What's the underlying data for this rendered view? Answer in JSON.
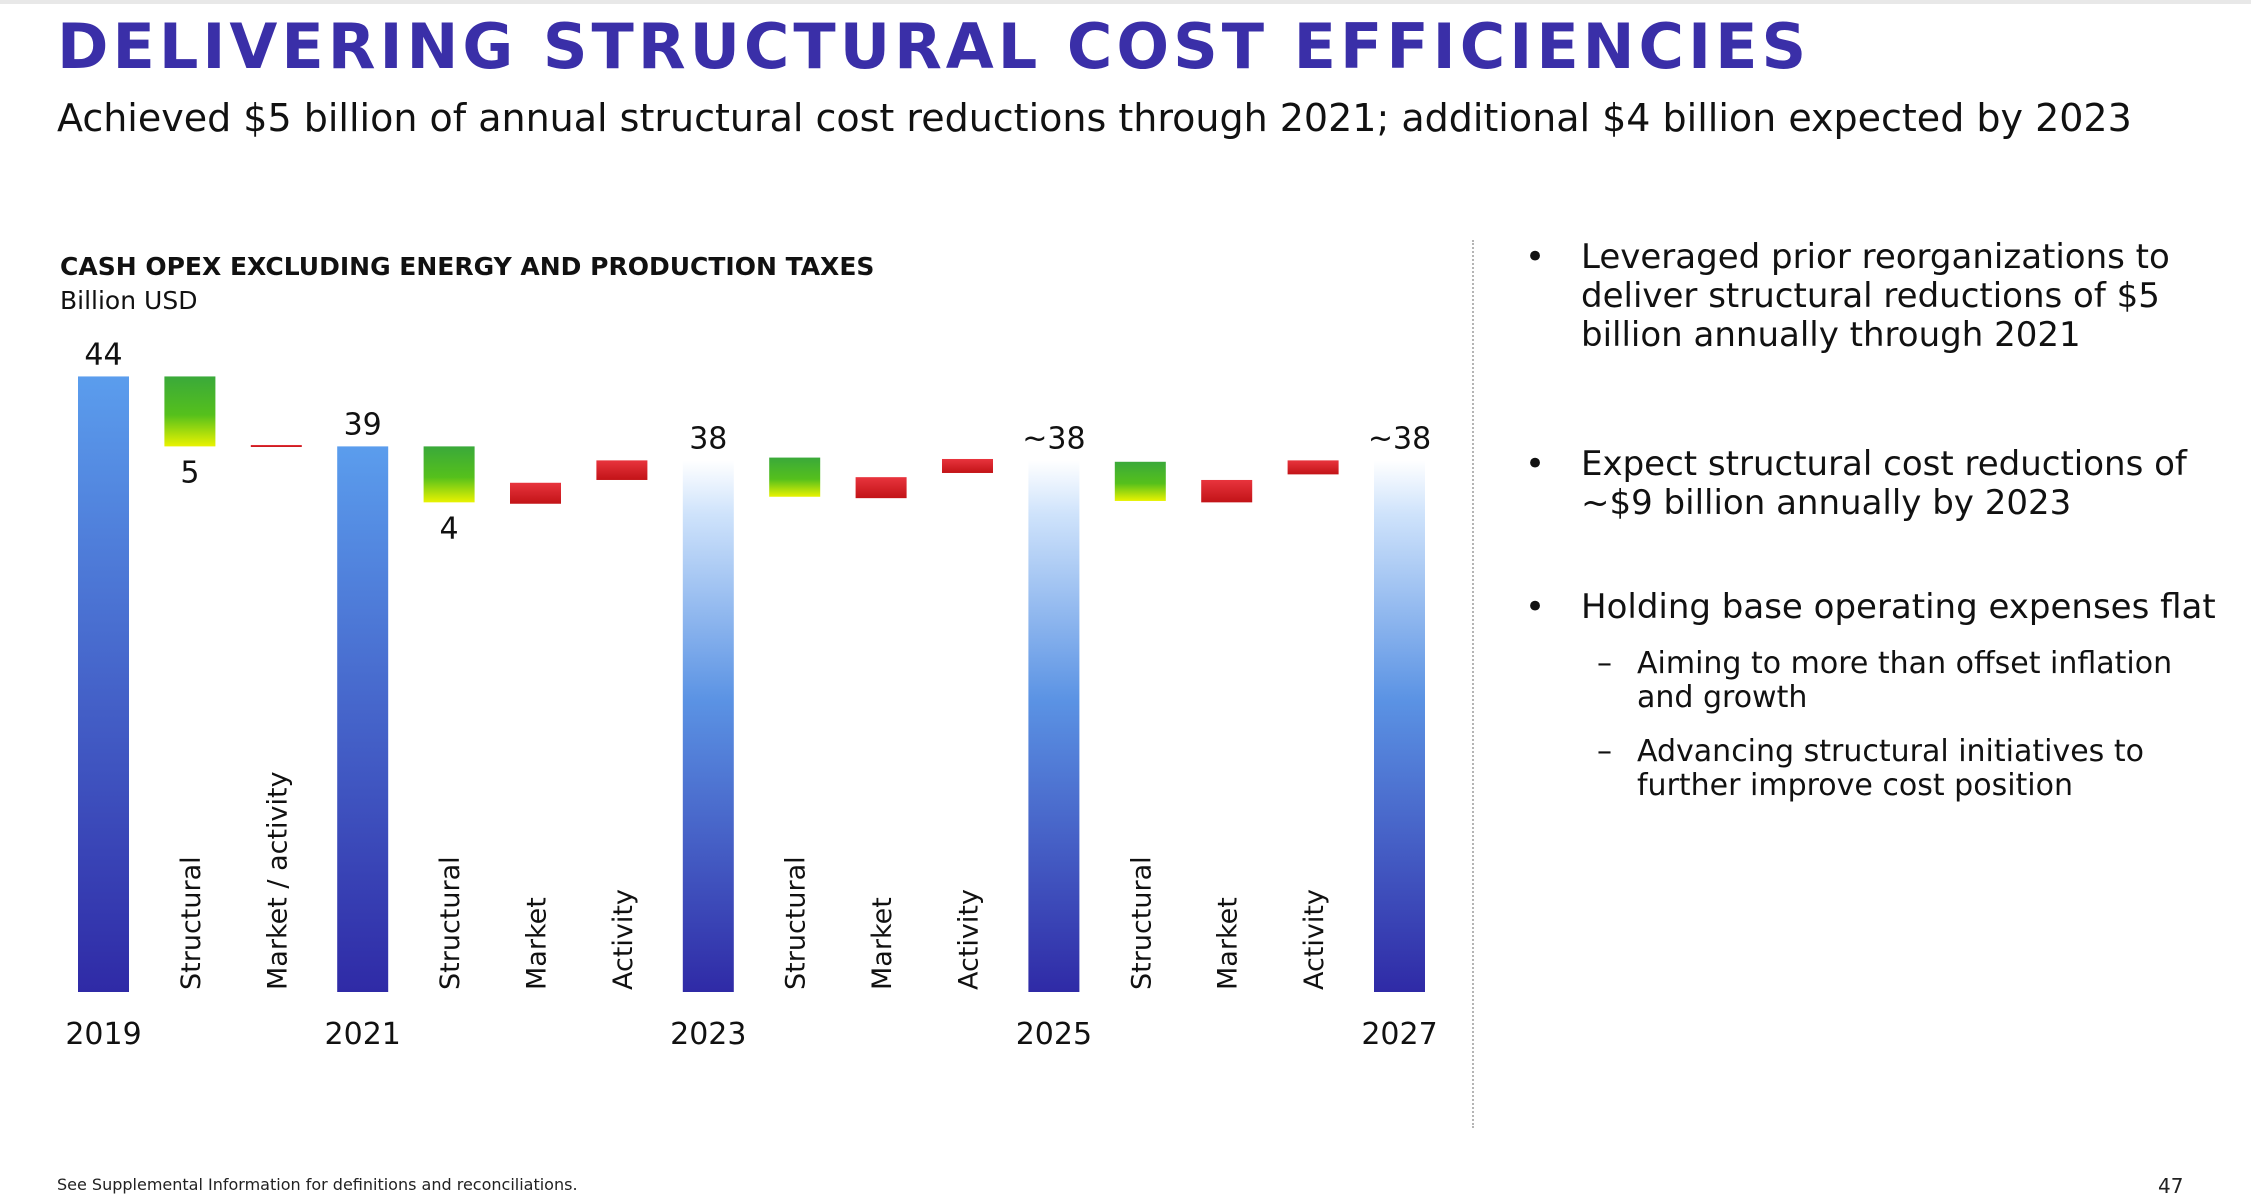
{
  "header": {
    "title": "DELIVERING STRUCTURAL COST EFFICIENCIES",
    "subtitle": "Achieved $5 billion of annual structural cost reductions through 2021; additional $4 billion expected by 2023"
  },
  "bullets": [
    {
      "text": "Leveraged prior reorganizations to deliver structural reductions of $5 billion annually through 2021"
    },
    {
      "text": "Expect structural cost reductions of ~$9 billion annually by 2023"
    },
    {
      "text": "Holding base operating expenses flat",
      "subs": [
        "Aiming to more than offset inflation and growth",
        "Advancing structural initiatives to further improve cost position"
      ]
    }
  ],
  "footer": {
    "note": "See Supplemental Information for definitions and reconciliations.",
    "page": "47"
  },
  "colors": {
    "title": "#3a2fa8",
    "total": "#4b86e0",
    "decrease": "#3fae2f",
    "increase": "#d42027"
  },
  "chart_data": {
    "type": "waterfall",
    "title": "CASH OPEX EXCLUDING ENERGY AND PRODUCTION TAXES",
    "unit": "Billion USD",
    "ylim": [
      0,
      44
    ],
    "bars": [
      {
        "label": "2019",
        "kind": "total",
        "start": 0,
        "end": 44,
        "value_label": "44",
        "label_pos": "top",
        "axis": "bottom"
      },
      {
        "label": "Structural",
        "kind": "decrease",
        "start": 44,
        "end": 39,
        "value_label": "5",
        "label_pos": "bottom",
        "axis": "rotated"
      },
      {
        "label": "Market / activity",
        "kind": "increase",
        "start": 39,
        "end": 39.1,
        "value_label": "",
        "axis": "rotated"
      },
      {
        "label": "2021",
        "kind": "total",
        "start": 0,
        "end": 39,
        "value_label": "39",
        "label_pos": "top",
        "axis": "bottom"
      },
      {
        "label": "Structural",
        "kind": "decrease",
        "start": 39,
        "end": 35,
        "value_label": "4",
        "label_pos": "bottom",
        "axis": "rotated"
      },
      {
        "label": "Market",
        "kind": "increase",
        "start": 34.9,
        "end": 36.4,
        "value_label": "",
        "axis": "rotated"
      },
      {
        "label": "Activity",
        "kind": "increase",
        "start": 36.6,
        "end": 38.0,
        "value_label": "",
        "axis": "rotated"
      },
      {
        "label": "2023",
        "kind": "total-fade",
        "start": 0,
        "end": 38,
        "value_label": "38",
        "label_pos": "top",
        "axis": "bottom"
      },
      {
        "label": "Structural",
        "kind": "decrease",
        "start": 38.2,
        "end": 35.4,
        "value_label": "",
        "axis": "rotated"
      },
      {
        "label": "Market",
        "kind": "increase",
        "start": 35.3,
        "end": 36.8,
        "value_label": "",
        "axis": "rotated"
      },
      {
        "label": "Activity",
        "kind": "increase",
        "start": 37.1,
        "end": 38.1,
        "value_label": "",
        "axis": "rotated"
      },
      {
        "label": "2025",
        "kind": "total-fade",
        "start": 0,
        "end": 38,
        "value_label": "~38",
        "label_pos": "top",
        "axis": "bottom"
      },
      {
        "label": "Structural",
        "kind": "decrease",
        "start": 37.9,
        "end": 35.1,
        "value_label": "",
        "axis": "rotated"
      },
      {
        "label": "Market",
        "kind": "increase",
        "start": 35.0,
        "end": 36.6,
        "value_label": "",
        "axis": "rotated"
      },
      {
        "label": "Activity",
        "kind": "increase",
        "start": 37.0,
        "end": 38.0,
        "value_label": "",
        "axis": "rotated"
      },
      {
        "label": "2027",
        "kind": "total-fade",
        "start": 0,
        "end": 38,
        "value_label": "~38",
        "label_pos": "top",
        "axis": "bottom"
      }
    ]
  }
}
